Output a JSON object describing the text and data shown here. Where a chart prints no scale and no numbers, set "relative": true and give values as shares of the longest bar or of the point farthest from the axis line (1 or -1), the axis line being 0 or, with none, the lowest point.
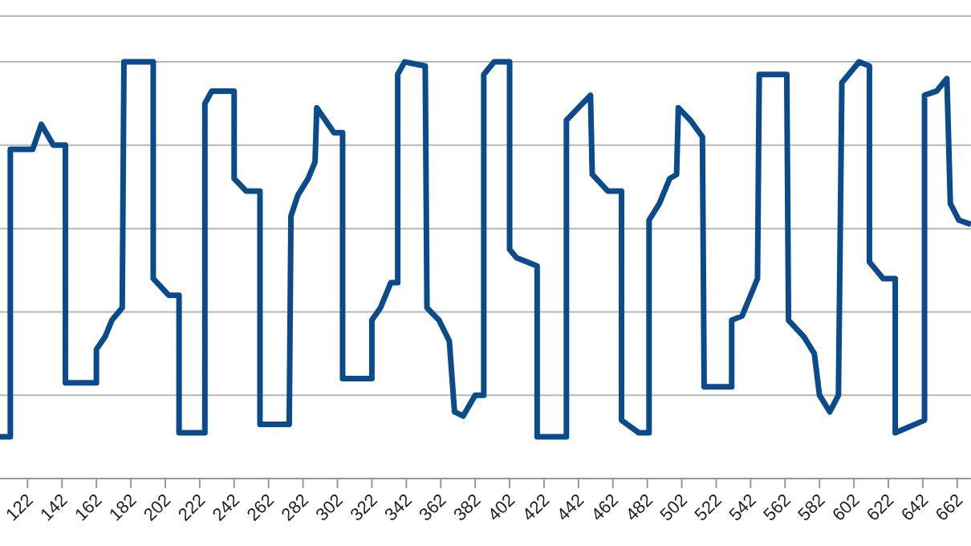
{
  "chart_data": {
    "type": "line",
    "relative": true,
    "grid": "y",
    "marker": "none",
    "line_style": "solid",
    "xlim": [
      106,
      670
    ],
    "xticks": [
      122,
      142,
      162,
      182,
      202,
      222,
      242,
      262,
      282,
      302,
      322,
      342,
      362,
      382,
      402,
      422,
      442,
      462,
      482,
      502,
      522,
      542,
      562,
      582,
      602,
      622,
      642,
      662
    ],
    "series": [
      {
        "color": "#0b4a8b",
        "x": [
          106,
          112,
          112,
          125,
          130,
          137,
          144,
          144,
          162,
          162,
          167,
          171,
          177,
          178,
          195,
          195,
          204,
          210,
          210,
          225,
          225,
          229,
          242,
          242,
          249,
          257,
          257,
          274,
          275,
          279,
          285,
          289,
          290,
          295,
          300,
          305,
          305,
          322,
          322,
          327,
          333,
          337,
          337,
          341,
          353,
          354,
          361,
          367,
          370,
          375,
          382,
          387,
          387,
          393,
          402,
          402,
          406,
          418,
          418,
          435,
          435,
          442,
          449,
          450,
          459,
          467,
          467,
          477,
          483,
          483,
          489,
          495,
          499,
          500,
          507,
          514,
          515,
          531,
          531,
          537,
          543,
          546,
          547,
          563,
          564,
          573,
          579,
          582,
          588,
          593,
          595,
          605,
          611,
          611,
          619,
          626,
          626,
          643,
          643,
          650,
          656,
          658,
          663,
          670
        ],
        "values": [
          0.1,
          0.1,
          0.79,
          0.79,
          0.85,
          0.8,
          0.8,
          0.23,
          0.23,
          0.31,
          0.34,
          0.38,
          0.41,
          1.0,
          1.0,
          0.48,
          0.44,
          0.44,
          0.11,
          0.11,
          0.9,
          0.93,
          0.93,
          0.72,
          0.69,
          0.69,
          0.13,
          0.13,
          0.63,
          0.68,
          0.72,
          0.76,
          0.89,
          0.86,
          0.83,
          0.83,
          0.24,
          0.24,
          0.38,
          0.41,
          0.47,
          0.47,
          0.97,
          1.0,
          0.99,
          0.41,
          0.38,
          0.33,
          0.16,
          0.15,
          0.2,
          0.2,
          0.97,
          1.0,
          1.0,
          0.55,
          0.53,
          0.51,
          0.1,
          0.1,
          0.86,
          0.89,
          0.92,
          0.73,
          0.69,
          0.69,
          0.14,
          0.11,
          0.11,
          0.62,
          0.66,
          0.72,
          0.73,
          0.89,
          0.86,
          0.82,
          0.22,
          0.22,
          0.38,
          0.39,
          0.45,
          0.48,
          0.97,
          0.97,
          0.38,
          0.34,
          0.3,
          0.2,
          0.16,
          0.2,
          0.95,
          1.0,
          0.99,
          0.52,
          0.48,
          0.48,
          0.11,
          0.14,
          0.92,
          0.93,
          0.96,
          0.66,
          0.62,
          0.61
        ]
      }
    ]
  }
}
